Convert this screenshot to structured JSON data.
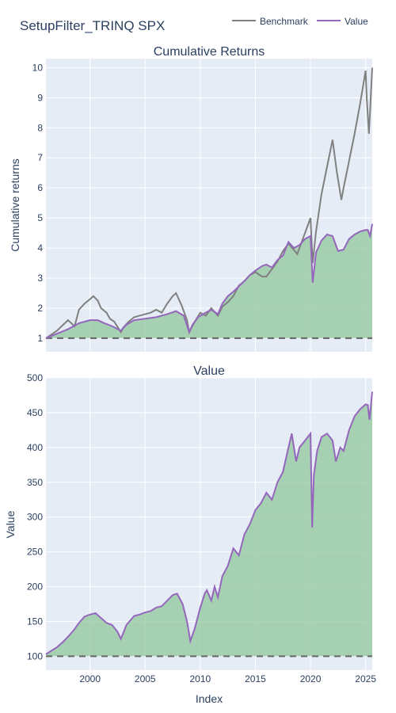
{
  "page_title": "SetupFilter_TRINQ SPX",
  "legend": {
    "items": [
      {
        "label": "Benchmark",
        "color": "#808080"
      },
      {
        "label": "Value",
        "color": "#9467bd"
      }
    ],
    "placement": "top-right"
  },
  "colors": {
    "plot_bg": "#e5ecf6",
    "grid": "#ffffff",
    "fill": "#8fc79a",
    "fill_opacity": 0.75,
    "benchmark": "#808080",
    "value": "#9467bd",
    "baseline": "#666666",
    "benchmark_over_fill": "#4f7f4a"
  },
  "chart_data": [
    {
      "type": "line",
      "title": "Cumulative Returns",
      "xlabel": "",
      "ylabel": "Cumulative returns",
      "xlim": [
        1996.0,
        2025.6
      ],
      "ylim": [
        0.55,
        10.3
      ],
      "x_ticks": [],
      "y_ticks": [
        1,
        2,
        3,
        4,
        5,
        6,
        7,
        8,
        9,
        10
      ],
      "grid": true,
      "baseline": 1,
      "series": [
        {
          "name": "Benchmark",
          "x": [
            1996.0,
            1997.0,
            1998.0,
            1998.6,
            1999.0,
            1999.5,
            2000.0,
            2000.3,
            2000.7,
            2001.0,
            2001.5,
            2001.8,
            2002.2,
            2002.8,
            2003.0,
            2003.5,
            2004.0,
            2004.5,
            2005.0,
            2005.5,
            2006.0,
            2006.5,
            2007.0,
            2007.5,
            2007.8,
            2008.3,
            2008.8,
            2009.0,
            2009.2,
            2009.5,
            2010.0,
            2010.5,
            2011.0,
            2011.6,
            2012.0,
            2012.5,
            2013.0,
            2013.5,
            2014.0,
            2014.5,
            2015.0,
            2015.6,
            2016.0,
            2016.5,
            2017.0,
            2017.5,
            2018.0,
            2018.8,
            2019.0,
            2019.5,
            2020.0,
            2020.2,
            2020.5,
            2021.0,
            2021.5,
            2022.0,
            2022.4,
            2022.8,
            2023.0,
            2023.5,
            2024.0,
            2024.5,
            2025.0,
            2025.1,
            2025.3,
            2025.6
          ],
          "values": [
            1.0,
            1.25,
            1.6,
            1.4,
            1.95,
            2.15,
            2.3,
            2.4,
            2.25,
            2.0,
            1.85,
            1.65,
            1.55,
            1.2,
            1.35,
            1.55,
            1.7,
            1.75,
            1.8,
            1.85,
            1.95,
            1.85,
            2.15,
            2.4,
            2.5,
            2.1,
            1.6,
            1.2,
            1.35,
            1.55,
            1.85,
            1.75,
            2.0,
            1.75,
            2.05,
            2.2,
            2.4,
            2.75,
            2.9,
            3.1,
            3.2,
            3.05,
            3.05,
            3.3,
            3.55,
            3.9,
            4.15,
            3.8,
            4.0,
            4.5,
            5.0,
            3.5,
            4.55,
            5.8,
            6.7,
            7.6,
            6.5,
            5.6,
            6.0,
            6.9,
            7.8,
            8.8,
            9.9,
            9.0,
            7.8,
            10.0
          ]
        },
        {
          "name": "Value",
          "x": [
            1996.0,
            1997.0,
            1998.0,
            1999.0,
            2000.0,
            2000.7,
            2001.3,
            2002.0,
            2002.8,
            2003.3,
            2004.0,
            2005.0,
            2006.0,
            2007.0,
            2007.8,
            2008.5,
            2009.0,
            2009.3,
            2009.8,
            2010.5,
            2011.0,
            2011.6,
            2012.0,
            2012.5,
            2013.0,
            2014.0,
            2014.5,
            2015.0,
            2015.6,
            2016.0,
            2016.5,
            2017.0,
            2017.5,
            2018.0,
            2018.5,
            2019.0,
            2019.5,
            2020.0,
            2020.2,
            2020.5,
            2021.0,
            2021.5,
            2022.0,
            2022.5,
            2023.0,
            2023.5,
            2024.0,
            2024.5,
            2025.0,
            2025.2,
            2025.4,
            2025.6
          ],
          "values": [
            1.0,
            1.15,
            1.3,
            1.5,
            1.6,
            1.6,
            1.5,
            1.4,
            1.25,
            1.45,
            1.6,
            1.65,
            1.7,
            1.8,
            1.9,
            1.75,
            1.2,
            1.45,
            1.7,
            1.85,
            1.95,
            1.8,
            2.15,
            2.4,
            2.55,
            2.9,
            3.1,
            3.25,
            3.4,
            3.45,
            3.35,
            3.6,
            3.75,
            4.2,
            4.0,
            4.1,
            4.3,
            4.4,
            2.85,
            3.85,
            4.25,
            4.45,
            4.4,
            3.9,
            3.95,
            4.3,
            4.45,
            4.55,
            4.6,
            4.6,
            4.4,
            4.8
          ]
        }
      ]
    },
    {
      "type": "area",
      "title": "Value",
      "xlabel": "Index",
      "ylabel": "Value",
      "xlim": [
        1996.0,
        2025.6
      ],
      "ylim": [
        80,
        500
      ],
      "x_ticks": [
        "2000",
        "2005",
        "2010",
        "2015",
        "2020",
        "2025"
      ],
      "y_ticks": [
        100,
        150,
        200,
        250,
        300,
        350,
        400,
        450,
        500
      ],
      "grid": true,
      "baseline": 100,
      "series": [
        {
          "name": "Value",
          "x": [
            1996.0,
            1996.5,
            1997.0,
            1997.5,
            1998.0,
            1998.5,
            1999.0,
            1999.5,
            2000.0,
            2000.5,
            2001.0,
            2001.5,
            2002.0,
            2002.5,
            2002.8,
            2003.3,
            2004.0,
            2004.5,
            2005.0,
            2005.5,
            2006.0,
            2006.5,
            2007.0,
            2007.5,
            2007.9,
            2008.4,
            2008.8,
            2009.1,
            2009.5,
            2010.0,
            2010.4,
            2010.6,
            2011.0,
            2011.3,
            2011.6,
            2012.0,
            2012.5,
            2013.0,
            2013.5,
            2014.0,
            2014.5,
            2015.0,
            2015.5,
            2016.0,
            2016.5,
            2017.0,
            2017.5,
            2018.0,
            2018.3,
            2018.7,
            2019.0,
            2019.5,
            2020.0,
            2020.15,
            2020.3,
            2020.6,
            2021.0,
            2021.5,
            2022.0,
            2022.3,
            2022.7,
            2023.0,
            2023.5,
            2024.0,
            2024.5,
            2025.0,
            2025.2,
            2025.35,
            2025.6
          ],
          "values": [
            103,
            108,
            113,
            120,
            128,
            137,
            148,
            157,
            160,
            162,
            155,
            148,
            145,
            135,
            125,
            145,
            158,
            160,
            163,
            165,
            170,
            172,
            180,
            188,
            190,
            175,
            150,
            122,
            140,
            170,
            190,
            195,
            180,
            200,
            185,
            215,
            230,
            255,
            245,
            275,
            290,
            310,
            320,
            335,
            325,
            350,
            365,
            400,
            420,
            380,
            400,
            410,
            420,
            285,
            360,
            395,
            415,
            420,
            410,
            380,
            400,
            395,
            425,
            445,
            455,
            462,
            461,
            440,
            480
          ]
        }
      ]
    }
  ]
}
